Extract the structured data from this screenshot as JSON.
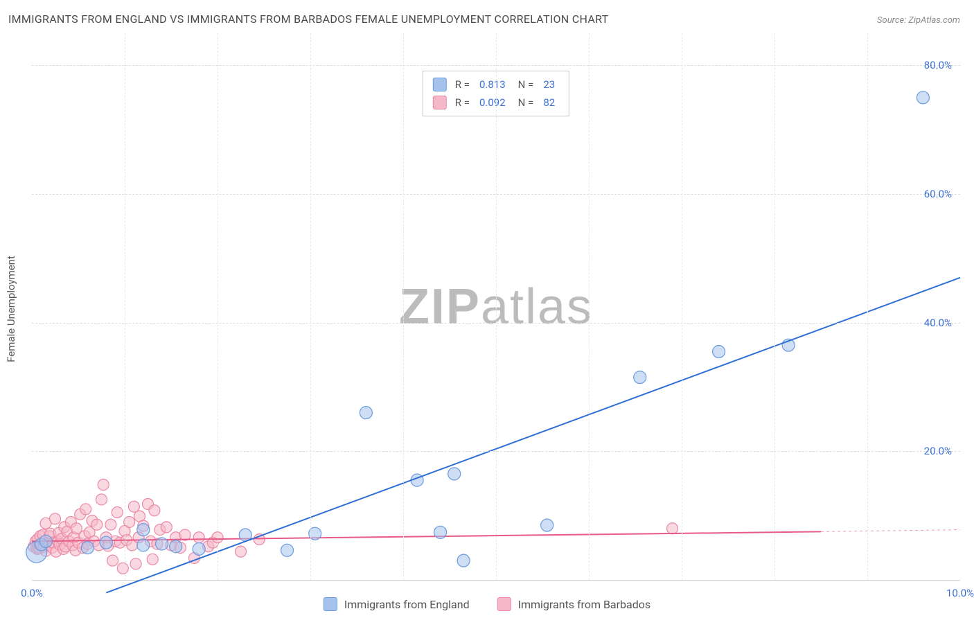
{
  "title": "IMMIGRANTS FROM ENGLAND VS IMMIGRANTS FROM BARBADOS FEMALE UNEMPLOYMENT CORRELATION CHART",
  "source": "Source: ZipAtlas.com",
  "watermark_bold": "ZIP",
  "watermark_light": "atlas",
  "y_axis_label": "Female Unemployment",
  "chart": {
    "type": "scatter",
    "background_color": "#ffffff",
    "grid_color": "#dcdcdc",
    "grid_dash": true,
    "xlim": [
      0,
      10
    ],
    "ylim": [
      0,
      85
    ],
    "x_ticks": [
      0,
      1,
      2,
      3,
      4,
      5,
      6,
      7,
      8,
      9,
      10
    ],
    "x_tick_labels": [
      "0.0%",
      "",
      "",
      "",
      "",
      "",
      "",
      "",
      "",
      "",
      "10.0%"
    ],
    "y_ticks": [
      20,
      40,
      60,
      80
    ],
    "y_tick_labels": [
      "20.0%",
      "40.0%",
      "60.0%",
      "80.0%"
    ],
    "axis_label_color": "#3b6fd6",
    "axis_label_fontsize": 15,
    "title_fontsize": 16,
    "title_color": "#4a4a4a",
    "series": [
      {
        "name": "Immigrants from England",
        "fill_color": "#a4c2ec",
        "stroke_color": "#6a9adf",
        "line_color": "#2f6fd6",
        "marker_opacity": 0.55,
        "marker_radius": 9,
        "line_width": 2,
        "R": "0.813",
        "N": "23",
        "points_default_r": 9,
        "points": [
          {
            "x": 0.05,
            "y": 4.3,
            "r": 15
          },
          {
            "x": 0.1,
            "y": 5.5
          },
          {
            "x": 0.15,
            "y": 6.0
          },
          {
            "x": 0.6,
            "y": 5.0
          },
          {
            "x": 0.8,
            "y": 5.8
          },
          {
            "x": 1.2,
            "y": 5.4
          },
          {
            "x": 1.2,
            "y": 7.8
          },
          {
            "x": 1.4,
            "y": 5.6
          },
          {
            "x": 1.55,
            "y": 5.2
          },
          {
            "x": 1.8,
            "y": 4.8
          },
          {
            "x": 2.3,
            "y": 7.0
          },
          {
            "x": 2.75,
            "y": 4.6
          },
          {
            "x": 3.05,
            "y": 7.2
          },
          {
            "x": 3.6,
            "y": 26.0
          },
          {
            "x": 4.15,
            "y": 15.5
          },
          {
            "x": 4.4,
            "y": 7.4
          },
          {
            "x": 4.55,
            "y": 16.5
          },
          {
            "x": 4.65,
            "y": 3.0
          },
          {
            "x": 5.55,
            "y": 8.5
          },
          {
            "x": 6.55,
            "y": 31.5
          },
          {
            "x": 7.4,
            "y": 35.5
          },
          {
            "x": 8.15,
            "y": 36.5
          },
          {
            "x": 9.6,
            "y": 75.0
          }
        ],
        "trend": {
          "x1": 0.8,
          "y1": -2,
          "x2": 10.0,
          "y2": 47.0
        }
      },
      {
        "name": "Immigrants from Barbados",
        "fill_color": "#f5b8c9",
        "stroke_color": "#ea89a6",
        "line_color": "#e85a86",
        "marker_opacity": 0.55,
        "marker_radius": 8,
        "line_width": 2,
        "R": "0.092",
        "N": "82",
        "points_default_r": 8,
        "points": [
          {
            "x": 0.02,
            "y": 5.2
          },
          {
            "x": 0.04,
            "y": 6.0
          },
          {
            "x": 0.05,
            "y": 5.0
          },
          {
            "x": 0.06,
            "y": 6.3
          },
          {
            "x": 0.06,
            "y": 4.8
          },
          {
            "x": 0.08,
            "y": 4.9
          },
          {
            "x": 0.09,
            "y": 6.8
          },
          {
            "x": 0.1,
            "y": 5.6
          },
          {
            "x": 0.12,
            "y": 7.0
          },
          {
            "x": 0.13,
            "y": 5.2
          },
          {
            "x": 0.15,
            "y": 4.5
          },
          {
            "x": 0.15,
            "y": 8.8
          },
          {
            "x": 0.18,
            "y": 5.4
          },
          {
            "x": 0.19,
            "y": 6.8
          },
          {
            "x": 0.2,
            "y": 7.2
          },
          {
            "x": 0.22,
            "y": 5.0
          },
          {
            "x": 0.23,
            "y": 5.8
          },
          {
            "x": 0.25,
            "y": 9.5
          },
          {
            "x": 0.26,
            "y": 4.4
          },
          {
            "x": 0.28,
            "y": 6.0
          },
          {
            "x": 0.29,
            "y": 7.3
          },
          {
            "x": 0.3,
            "y": 5.5
          },
          {
            "x": 0.32,
            "y": 6.4
          },
          {
            "x": 0.34,
            "y": 4.8
          },
          {
            "x": 0.35,
            "y": 8.2
          },
          {
            "x": 0.36,
            "y": 5.2
          },
          {
            "x": 0.38,
            "y": 7.5
          },
          {
            "x": 0.4,
            "y": 6.0
          },
          {
            "x": 0.42,
            "y": 9.0
          },
          {
            "x": 0.44,
            "y": 5.4
          },
          {
            "x": 0.45,
            "y": 6.6
          },
          {
            "x": 0.47,
            "y": 4.6
          },
          {
            "x": 0.48,
            "y": 8.0
          },
          {
            "x": 0.5,
            "y": 5.8
          },
          {
            "x": 0.52,
            "y": 10.2
          },
          {
            "x": 0.55,
            "y": 5.0
          },
          {
            "x": 0.57,
            "y": 6.8
          },
          {
            "x": 0.58,
            "y": 11.0
          },
          {
            "x": 0.6,
            "y": 5.6
          },
          {
            "x": 0.62,
            "y": 7.4
          },
          {
            "x": 0.65,
            "y": 9.2
          },
          {
            "x": 0.67,
            "y": 6.0
          },
          {
            "x": 0.7,
            "y": 8.6
          },
          {
            "x": 0.72,
            "y": 5.4
          },
          {
            "x": 0.75,
            "y": 12.5
          },
          {
            "x": 0.77,
            "y": 14.8
          },
          {
            "x": 0.8,
            "y": 6.6
          },
          {
            "x": 0.82,
            "y": 5.3
          },
          {
            "x": 0.85,
            "y": 8.6
          },
          {
            "x": 0.87,
            "y": 3.0
          },
          {
            "x": 0.9,
            "y": 6.0
          },
          {
            "x": 0.92,
            "y": 10.5
          },
          {
            "x": 0.95,
            "y": 5.8
          },
          {
            "x": 0.98,
            "y": 1.8
          },
          {
            "x": 1.0,
            "y": 7.6
          },
          {
            "x": 1.02,
            "y": 6.2
          },
          {
            "x": 1.05,
            "y": 9.0
          },
          {
            "x": 1.08,
            "y": 5.4
          },
          {
            "x": 1.1,
            "y": 11.4
          },
          {
            "x": 1.12,
            "y": 2.5
          },
          {
            "x": 1.15,
            "y": 6.6
          },
          {
            "x": 1.16,
            "y": 9.9
          },
          {
            "x": 1.2,
            "y": 8.4
          },
          {
            "x": 1.25,
            "y": 11.8
          },
          {
            "x": 1.28,
            "y": 6.0
          },
          {
            "x": 1.3,
            "y": 3.2
          },
          {
            "x": 1.32,
            "y": 10.8
          },
          {
            "x": 1.35,
            "y": 5.6
          },
          {
            "x": 1.38,
            "y": 7.8
          },
          {
            "x": 1.45,
            "y": 8.2
          },
          {
            "x": 1.5,
            "y": 5.4
          },
          {
            "x": 1.55,
            "y": 6.6
          },
          {
            "x": 1.6,
            "y": 5.0
          },
          {
            "x": 1.65,
            "y": 7.0
          },
          {
            "x": 1.75,
            "y": 3.4
          },
          {
            "x": 1.8,
            "y": 6.6
          },
          {
            "x": 1.9,
            "y": 5.2
          },
          {
            "x": 1.95,
            "y": 5.8
          },
          {
            "x": 2.0,
            "y": 6.6
          },
          {
            "x": 2.25,
            "y": 4.4
          },
          {
            "x": 2.45,
            "y": 6.3
          },
          {
            "x": 6.9,
            "y": 8.0
          }
        ],
        "trend": {
          "x1": 0.0,
          "y1": 6.0,
          "x2": 8.5,
          "y2": 7.5
        },
        "trend_dashed_extension": {
          "x1": 8.5,
          "y1": 7.5,
          "x2": 10.0,
          "y2": 7.8
        }
      }
    ],
    "corr_labels": {
      "R": "R = ",
      "N": "N = "
    },
    "legend_items": [
      "Immigrants from England",
      "Immigrants from Barbados"
    ]
  }
}
